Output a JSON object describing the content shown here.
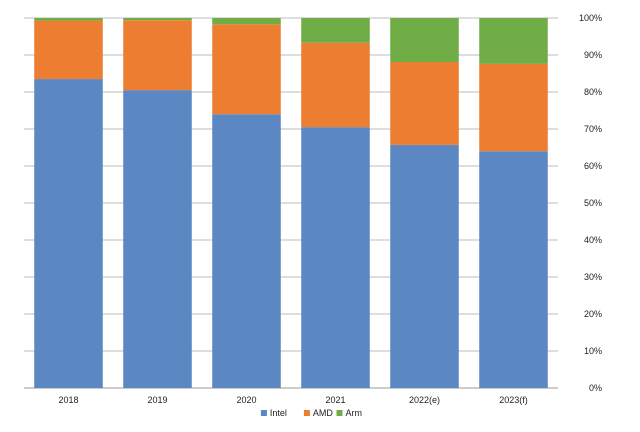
{
  "chart_data": {
    "type": "bar",
    "stacked": true,
    "categories": [
      "2018",
      "2019",
      "2020",
      "2021",
      "2022(e)",
      "2023(f)"
    ],
    "series": [
      {
        "name": "Intel",
        "color": "#5b87c3",
        "values": [
          83.5,
          80.5,
          74,
          70.5,
          65.7,
          64
        ]
      },
      {
        "name": "AMD",
        "color": "#ed7d31",
        "values": [
          15.8,
          18.9,
          24.3,
          22.8,
          22.4,
          23.6
        ]
      },
      {
        "name": "Arm",
        "color": "#70ad47",
        "values": [
          0.7,
          0.6,
          1.7,
          6.7,
          11.9,
          12.4
        ]
      }
    ],
    "ylim": [
      0,
      100
    ],
    "y_ticks": [
      "0%",
      "10%",
      "20%",
      "30%",
      "40%",
      "50%",
      "60%",
      "70%",
      "80%",
      "90%",
      "100%"
    ],
    "y_axis_side": "right",
    "grid": true,
    "legend_position": "bottom",
    "title": "",
    "xlabel": "",
    "ylabel": ""
  }
}
